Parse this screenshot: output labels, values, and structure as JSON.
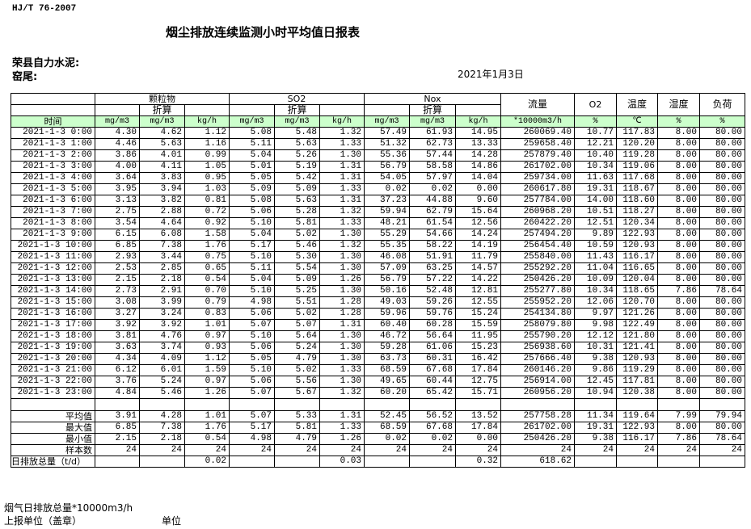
{
  "header": {
    "standard": "HJ/T  76-2007",
    "title": "烟尘排放连续监测小时平均值日报表",
    "company": "荣县自力水泥:",
    "kiln": "窑尾:",
    "date": "2021年1月3日"
  },
  "table": {
    "groups": {
      "particulate": "颗粒物",
      "so2": "SO2",
      "nox": "Nox",
      "flow": "流量",
      "o2": "O2",
      "temp": "温度",
      "humidity": "湿度",
      "load": "负荷"
    },
    "converted_label": "折算",
    "units": [
      "时间",
      "mg/m3",
      "mg/m3",
      "kg/h",
      "mg/m3",
      "mg/m3",
      "kg/h",
      "mg/m3",
      "mg/m3",
      "kg/h",
      "*10000m3/h",
      "%",
      "℃",
      "%",
      "%"
    ],
    "rows": [
      [
        "2021-1-3 0:00",
        "4.30",
        "4.62",
        "1.12",
        "5.08",
        "5.48",
        "1.32",
        "57.49",
        "61.93",
        "14.95",
        "260069.40",
        "10.77",
        "117.83",
        "8.00",
        "80.00"
      ],
      [
        "2021-1-3 1:00",
        "4.46",
        "5.63",
        "1.16",
        "5.11",
        "5.63",
        "1.33",
        "51.32",
        "62.73",
        "13.33",
        "259658.40",
        "12.21",
        "120.20",
        "8.00",
        "80.00"
      ],
      [
        "2021-1-3 2:00",
        "3.86",
        "4.01",
        "0.99",
        "5.04",
        "5.26",
        "1.30",
        "55.36",
        "57.44",
        "14.28",
        "257879.40",
        "10.40",
        "119.28",
        "8.00",
        "80.00"
      ],
      [
        "2021-1-3 3:00",
        "4.00",
        "4.11",
        "1.05",
        "5.01",
        "5.19",
        "1.31",
        "56.79",
        "58.58",
        "14.86",
        "261702.00",
        "10.34",
        "119.06",
        "8.00",
        "80.00"
      ],
      [
        "2021-1-3 4:00",
        "3.64",
        "3.83",
        "0.95",
        "5.05",
        "5.42",
        "1.31",
        "54.05",
        "57.97",
        "14.04",
        "259734.00",
        "11.63",
        "117.68",
        "8.00",
        "80.00"
      ],
      [
        "2021-1-3 5:00",
        "3.95",
        "3.94",
        "1.03",
        "5.09",
        "5.09",
        "1.33",
        "0.02",
        "0.02",
        "0.00",
        "260617.80",
        "19.31",
        "118.67",
        "8.00",
        "80.00"
      ],
      [
        "2021-1-3 6:00",
        "3.13",
        "3.82",
        "0.81",
        "5.08",
        "5.63",
        "1.31",
        "37.23",
        "44.88",
        "9.60",
        "257784.00",
        "14.00",
        "118.60",
        "8.00",
        "80.00"
      ],
      [
        "2021-1-3 7:00",
        "2.75",
        "2.88",
        "0.72",
        "5.06",
        "5.28",
        "1.32",
        "59.94",
        "62.79",
        "15.64",
        "260968.20",
        "10.51",
        "118.27",
        "8.00",
        "80.00"
      ],
      [
        "2021-1-3 8:00",
        "3.54",
        "4.64",
        "0.92",
        "5.10",
        "5.81",
        "1.33",
        "48.21",
        "61.54",
        "12.56",
        "260422.20",
        "12.51",
        "120.34",
        "8.00",
        "80.00"
      ],
      [
        "2021-1-3 9:00",
        "6.15",
        "6.08",
        "1.58",
        "5.04",
        "5.02",
        "1.30",
        "55.29",
        "54.66",
        "14.24",
        "257494.20",
        "9.89",
        "122.93",
        "8.00",
        "80.00"
      ],
      [
        "2021-1-3 10:00",
        "6.85",
        "7.38",
        "1.76",
        "5.17",
        "5.46",
        "1.32",
        "55.35",
        "58.22",
        "14.19",
        "256454.40",
        "10.59",
        "120.93",
        "8.00",
        "80.00"
      ],
      [
        "2021-1-3 11:00",
        "2.93",
        "3.44",
        "0.75",
        "5.10",
        "5.30",
        "1.30",
        "46.08",
        "51.91",
        "11.79",
        "255840.00",
        "11.43",
        "116.17",
        "8.00",
        "80.00"
      ],
      [
        "2021-1-3 12:00",
        "2.53",
        "2.85",
        "0.65",
        "5.11",
        "5.54",
        "1.30",
        "57.09",
        "63.25",
        "14.57",
        "255292.20",
        "11.04",
        "116.65",
        "8.00",
        "80.00"
      ],
      [
        "2021-1-3 13:00",
        "2.15",
        "2.18",
        "0.54",
        "5.04",
        "5.09",
        "1.26",
        "56.79",
        "57.22",
        "14.22",
        "250426.20",
        "10.09",
        "120.04",
        "8.00",
        "80.00"
      ],
      [
        "2021-1-3 14:00",
        "2.73",
        "2.91",
        "0.70",
        "5.10",
        "5.25",
        "1.30",
        "50.16",
        "52.48",
        "12.81",
        "255277.80",
        "10.34",
        "118.65",
        "7.86",
        "78.64"
      ],
      [
        "2021-1-3 15:00",
        "3.08",
        "3.99",
        "0.79",
        "4.98",
        "5.51",
        "1.28",
        "49.03",
        "59.26",
        "12.55",
        "255952.20",
        "12.06",
        "120.70",
        "8.00",
        "80.00"
      ],
      [
        "2021-1-3 16:00",
        "3.27",
        "3.24",
        "0.83",
        "5.06",
        "5.02",
        "1.28",
        "59.96",
        "59.76",
        "15.24",
        "254134.80",
        "9.97",
        "121.26",
        "8.00",
        "80.00"
      ],
      [
        "2021-1-3 17:00",
        "3.92",
        "3.92",
        "1.01",
        "5.07",
        "5.07",
        "1.31",
        "60.40",
        "60.28",
        "15.59",
        "258079.80",
        "9.98",
        "122.49",
        "8.00",
        "80.00"
      ],
      [
        "2021-1-3 18:00",
        "3.81",
        "4.76",
        "0.97",
        "5.10",
        "5.64",
        "1.30",
        "46.72",
        "56.64",
        "11.95",
        "255790.20",
        "12.12",
        "121.80",
        "8.00",
        "80.00"
      ],
      [
        "2021-1-3 19:00",
        "3.63",
        "3.74",
        "0.93",
        "5.06",
        "5.24",
        "1.30",
        "59.28",
        "61.06",
        "15.23",
        "256938.60",
        "10.31",
        "121.41",
        "8.00",
        "80.00"
      ],
      [
        "2021-1-3 20:00",
        "4.34",
        "4.09",
        "1.12",
        "5.05",
        "4.79",
        "1.30",
        "63.73",
        "60.31",
        "16.42",
        "257666.40",
        "9.38",
        "120.93",
        "8.00",
        "80.00"
      ],
      [
        "2021-1-3 21:00",
        "6.12",
        "6.01",
        "1.59",
        "5.10",
        "5.02",
        "1.33",
        "68.59",
        "67.68",
        "17.84",
        "260146.20",
        "9.86",
        "119.29",
        "8.00",
        "80.00"
      ],
      [
        "2021-1-3 22:00",
        "3.76",
        "5.24",
        "0.97",
        "5.06",
        "5.56",
        "1.30",
        "49.65",
        "60.44",
        "12.75",
        "256914.00",
        "12.45",
        "117.81",
        "8.00",
        "80.00"
      ],
      [
        "2021-1-3 23:00",
        "4.84",
        "5.46",
        "1.26",
        "5.07",
        "5.67",
        "1.32",
        "60.20",
        "65.42",
        "15.71",
        "260956.20",
        "10.94",
        "120.38",
        "8.00",
        "80.00"
      ]
    ],
    "summary": [
      [
        "平均值",
        "3.91",
        "4.28",
        "1.01",
        "5.07",
        "5.33",
        "1.31",
        "52.45",
        "56.52",
        "13.52",
        "257758.28",
        "11.34",
        "119.64",
        "7.99",
        "79.94"
      ],
      [
        "最大值",
        "6.85",
        "7.38",
        "1.76",
        "5.17",
        "5.81",
        "1.33",
        "68.59",
        "67.68",
        "17.84",
        "261702.00",
        "19.31",
        "122.93",
        "8.00",
        "80.00"
      ],
      [
        "最小值",
        "2.15",
        "2.18",
        "0.54",
        "4.98",
        "4.79",
        "1.26",
        "0.02",
        "0.02",
        "0.00",
        "250426.20",
        "9.38",
        "116.17",
        "7.86",
        "78.64"
      ],
      [
        "样本数",
        "24",
        "24",
        "24",
        "24",
        "24",
        "24",
        "24",
        "24",
        "24",
        "24",
        "24",
        "24",
        "24",
        "24"
      ],
      [
        "日排放总量（t/d）",
        "",
        "",
        "0.02",
        "",
        "",
        "0.03",
        "",
        "",
        "0.32",
        "618.62",
        "",
        "",
        "",
        ""
      ]
    ]
  },
  "footer": {
    "flue_gas_total": "烟气日排放总量*10000m3/h",
    "reporting_unit": "上报单位（盖章）",
    "unit": "单位"
  }
}
